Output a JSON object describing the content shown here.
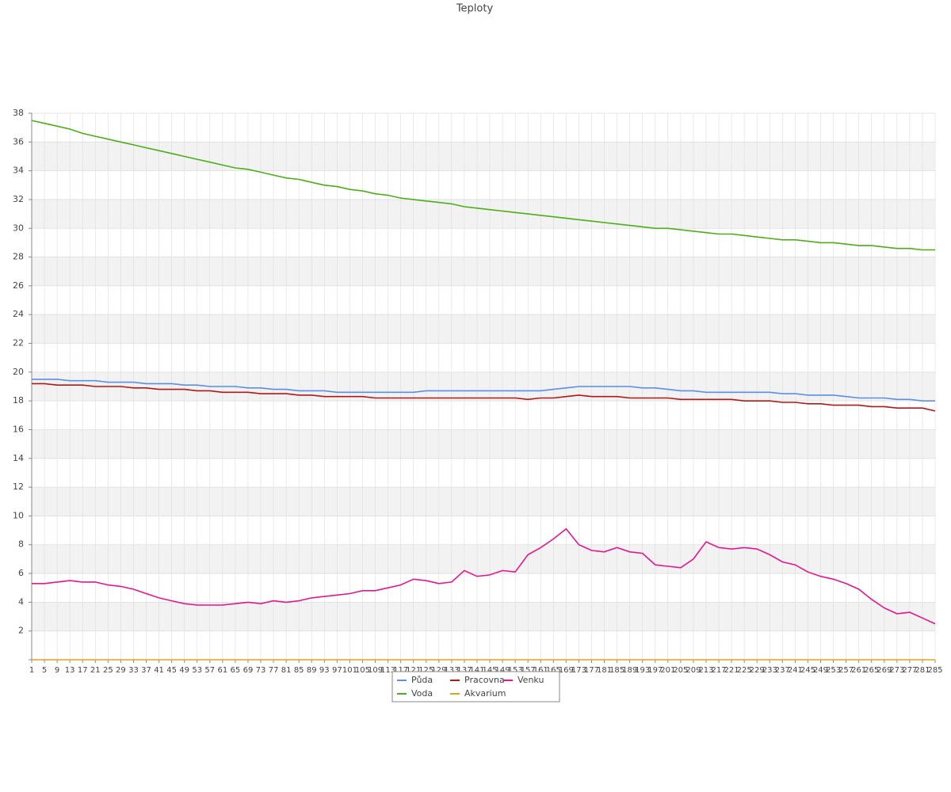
{
  "chart_data": {
    "type": "line",
    "title": "Teploty",
    "categories": [
      1,
      5,
      9,
      13,
      17,
      21,
      25,
      29,
      33,
      37,
      41,
      45,
      49,
      53,
      57,
      61,
      65,
      69,
      73,
      77,
      81,
      85,
      89,
      93,
      97,
      101,
      105,
      109,
      113,
      117,
      121,
      125,
      129,
      133,
      137,
      141,
      145,
      149,
      153,
      157,
      161,
      165,
      169,
      173,
      177,
      181,
      185,
      189,
      193,
      197,
      201,
      205,
      209,
      213,
      217,
      221,
      225,
      229,
      233,
      237,
      241,
      245,
      249,
      253,
      257,
      261,
      265,
      269,
      273,
      277,
      281,
      285
    ],
    "series": [
      {
        "name": "Půda",
        "color": "#5b8ee6",
        "values": [
          19.5,
          19.5,
          19.5,
          19.4,
          19.4,
          19.4,
          19.3,
          19.3,
          19.3,
          19.2,
          19.2,
          19.2,
          19.1,
          19.1,
          19.0,
          19.0,
          19.0,
          18.9,
          18.9,
          18.8,
          18.8,
          18.7,
          18.7,
          18.7,
          18.6,
          18.6,
          18.6,
          18.6,
          18.6,
          18.6,
          18.6,
          18.7,
          18.7,
          18.7,
          18.7,
          18.7,
          18.7,
          18.7,
          18.7,
          18.7,
          18.7,
          18.8,
          18.9,
          19.0,
          19.0,
          19.0,
          19.0,
          19.0,
          18.9,
          18.9,
          18.8,
          18.7,
          18.7,
          18.6,
          18.6,
          18.6,
          18.6,
          18.6,
          18.6,
          18.5,
          18.5,
          18.4,
          18.4,
          18.4,
          18.3,
          18.2,
          18.2,
          18.2,
          18.1,
          18.1,
          18.0,
          18.0
        ]
      },
      {
        "name": "Pracovna",
        "color": "#b21818",
        "values": [
          19.2,
          19.2,
          19.1,
          19.1,
          19.1,
          19.0,
          19.0,
          19.0,
          18.9,
          18.9,
          18.8,
          18.8,
          18.8,
          18.7,
          18.7,
          18.6,
          18.6,
          18.6,
          18.5,
          18.5,
          18.5,
          18.4,
          18.4,
          18.3,
          18.3,
          18.3,
          18.3,
          18.2,
          18.2,
          18.2,
          18.2,
          18.2,
          18.2,
          18.2,
          18.2,
          18.2,
          18.2,
          18.2,
          18.2,
          18.1,
          18.2,
          18.2,
          18.3,
          18.4,
          18.3,
          18.3,
          18.3,
          18.2,
          18.2,
          18.2,
          18.2,
          18.1,
          18.1,
          18.1,
          18.1,
          18.1,
          18.0,
          18.0,
          18.0,
          17.9,
          17.9,
          17.8,
          17.8,
          17.7,
          17.7,
          17.7,
          17.6,
          17.6,
          17.5,
          17.5,
          17.5,
          17.3
        ]
      },
      {
        "name": "Venku",
        "color": "#e6168c",
        "values": [
          5.3,
          5.3,
          5.4,
          5.5,
          5.4,
          5.4,
          5.2,
          5.1,
          4.9,
          4.6,
          4.3,
          4.1,
          3.9,
          3.8,
          3.8,
          3.8,
          3.9,
          4.0,
          3.9,
          4.1,
          4.0,
          4.1,
          4.3,
          4.4,
          4.5,
          4.6,
          4.8,
          4.8,
          5.0,
          5.2,
          5.6,
          5.5,
          5.3,
          5.4,
          6.2,
          5.8,
          5.9,
          6.2,
          6.1,
          7.3,
          7.8,
          8.4,
          9.1,
          8.0,
          7.6,
          7.5,
          7.8,
          7.5,
          7.4,
          6.6,
          6.5,
          6.4,
          7.0,
          8.2,
          7.8,
          7.7,
          7.8,
          7.7,
          7.3,
          6.8,
          6.6,
          6.1,
          5.8,
          5.6,
          5.3,
          4.9,
          4.2,
          3.6,
          3.2,
          3.3,
          2.9,
          2.5
        ]
      },
      {
        "name": "Voda",
        "color": "#4caf17",
        "values": [
          37.5,
          37.3,
          37.1,
          36.9,
          36.6,
          36.4,
          36.2,
          36.0,
          35.8,
          35.6,
          35.4,
          35.2,
          35.0,
          34.8,
          34.6,
          34.4,
          34.2,
          34.1,
          33.9,
          33.7,
          33.5,
          33.4,
          33.2,
          33.0,
          32.9,
          32.7,
          32.6,
          32.4,
          32.3,
          32.1,
          32.0,
          31.9,
          31.8,
          31.7,
          31.5,
          31.4,
          31.3,
          31.2,
          31.1,
          31.0,
          30.9,
          30.8,
          30.7,
          30.6,
          30.5,
          30.4,
          30.3,
          30.2,
          30.1,
          30.0,
          30.0,
          29.9,
          29.8,
          29.7,
          29.6,
          29.6,
          29.5,
          29.4,
          29.3,
          29.2,
          29.2,
          29.1,
          29.0,
          29.0,
          28.9,
          28.8,
          28.8,
          28.7,
          28.6,
          28.6,
          28.5,
          28.5
        ]
      },
      {
        "name": "Akvarium",
        "color": "#e6a020",
        "values": [
          0,
          0,
          0,
          0,
          0,
          0,
          0,
          0,
          0,
          0,
          0,
          0,
          0,
          0,
          0,
          0,
          0,
          0,
          0,
          0,
          0,
          0,
          0,
          0,
          0,
          0,
          0,
          0,
          0,
          0,
          0,
          0,
          0,
          0,
          0,
          0,
          0,
          0,
          0,
          0,
          0,
          0,
          0,
          0,
          0,
          0,
          0,
          0,
          0,
          0,
          0,
          0,
          0,
          0,
          0,
          0,
          0,
          0,
          0,
          0,
          0,
          0,
          0,
          0,
          0,
          0,
          0,
          0,
          0,
          0,
          0,
          0
        ]
      }
    ],
    "ylim": [
      0,
      38
    ],
    "yticks": [
      2,
      4,
      6,
      8,
      10,
      12,
      14,
      16,
      18,
      20,
      22,
      24,
      26,
      28,
      30,
      32,
      34,
      36,
      38
    ],
    "grid": true,
    "legend": "bottom"
  }
}
